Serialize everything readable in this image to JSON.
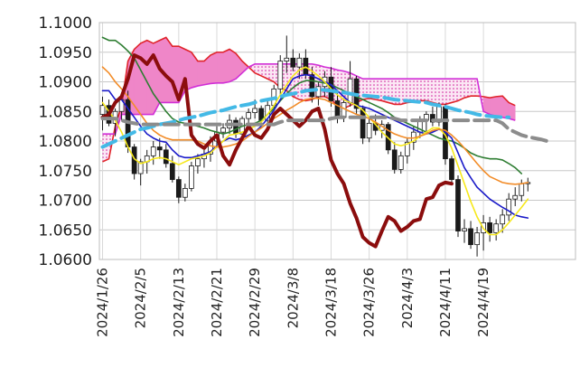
{
  "chart_data": {
    "type": "line",
    "title": "",
    "xlabel": "",
    "ylabel": "",
    "ylim": [
      1.06,
      1.1
    ],
    "ytick_labels": [
      "1.1000",
      "1.0950",
      "1.0900",
      "1.0850",
      "1.0800",
      "1.0750",
      "1.0700",
      "1.0650",
      "1.0600"
    ],
    "yticks": [
      1.1,
      1.095,
      1.09,
      1.085,
      1.08,
      1.075,
      1.07,
      1.065,
      1.06
    ],
    "xtick_labels": [
      "2024/1/26",
      "2024/2/5",
      "2024/2/13",
      "2024/2/21",
      "2024/2/29",
      "2024/3/8",
      "2024/3/18",
      "2024/3/26",
      "2024/4/3",
      "2024/4/11",
      "2024/4/19"
    ],
    "xtick_index": [
      0,
      6,
      12,
      18,
      24,
      30,
      36,
      42,
      48,
      54,
      60
    ],
    "n_periods": 75,
    "grid": true,
    "legend": "none",
    "kumo_span_a": [
      1.0765,
      1.077,
      1.0825,
      1.086,
      1.0935,
      1.0955,
      1.0965,
      1.097,
      1.0965,
      1.097,
      1.0975,
      1.096,
      1.096,
      1.0955,
      1.095,
      1.0935,
      1.0935,
      1.0945,
      1.095,
      1.095,
      1.0955,
      1.0948,
      1.0935,
      1.0925,
      1.0915,
      1.091,
      1.0905,
      1.09,
      1.089,
      1.0885,
      1.0875,
      1.087,
      1.0868,
      1.087,
      1.0875,
      1.0875,
      1.087,
      1.086,
      1.0855,
      1.086,
      1.0865,
      1.087,
      1.0872,
      1.087,
      1.0868,
      1.0865,
      1.0862,
      1.0862,
      1.0865,
      1.0866,
      1.0868,
      1.0868,
      1.0865,
      1.0862,
      1.0862,
      1.0865,
      1.0868,
      1.0873,
      1.0876,
      1.0876,
      1.0875,
      1.0873,
      1.0875,
      1.0876,
      1.0865,
      1.086
    ],
    "kumo_span_b": [
      1.0812,
      1.0812,
      1.0812,
      1.0845,
      1.0845,
      1.0845,
      1.0845,
      1.0845,
      1.0845,
      1.0865,
      1.0865,
      1.0865,
      1.0865,
      1.0885,
      1.089,
      1.0893,
      1.0895,
      1.0897,
      1.0898,
      1.0898,
      1.09,
      1.0905,
      1.0915,
      1.0925,
      1.093,
      1.093,
      1.093,
      1.093,
      1.093,
      1.093,
      1.093,
      1.093,
      1.093,
      1.093,
      1.0928,
      1.0925,
      1.0923,
      1.092,
      1.0918,
      1.0915,
      1.091,
      1.0905,
      1.0905,
      1.0905,
      1.0905,
      1.0905,
      1.0905,
      1.0905,
      1.0905,
      1.0905,
      1.0905,
      1.0905,
      1.0905,
      1.0905,
      1.0905,
      1.0905,
      1.0905,
      1.0905,
      1.0905,
      1.0905,
      1.085,
      1.0845,
      1.0842,
      1.084,
      1.0838,
      1.0835
    ],
    "candles": [
      [
        1.0845,
        1.0875,
        1.0818,
        1.086
      ],
      [
        1.086,
        1.087,
        1.0825,
        1.083
      ],
      [
        1.083,
        1.0855,
        1.0808,
        1.085
      ],
      [
        1.085,
        1.0878,
        1.0835,
        1.087
      ],
      [
        1.087,
        1.0885,
        1.078,
        1.079
      ],
      [
        1.079,
        1.0795,
        1.0735,
        1.0745
      ],
      [
        1.0745,
        1.077,
        1.0725,
        1.0765
      ],
      [
        1.0765,
        1.0785,
        1.0745,
        1.0775
      ],
      [
        1.0775,
        1.08,
        1.076,
        1.079
      ],
      [
        1.079,
        1.0805,
        1.077,
        1.0785
      ],
      [
        1.0785,
        1.0795,
        1.0755,
        1.0762
      ],
      [
        1.0762,
        1.0775,
        1.073,
        1.0735
      ],
      [
        1.0735,
        1.074,
        1.0695,
        1.0705
      ],
      [
        1.0705,
        1.0728,
        1.0698,
        1.072
      ],
      [
        1.072,
        1.0765,
        1.0715,
        1.0758
      ],
      [
        1.0758,
        1.0778,
        1.0745,
        1.077
      ],
      [
        1.077,
        1.0785,
        1.0755,
        1.0778
      ],
      [
        1.0778,
        1.0808,
        1.0765,
        1.08
      ],
      [
        1.08,
        1.0825,
        1.079,
        1.0815
      ],
      [
        1.0815,
        1.083,
        1.0805,
        1.0822
      ],
      [
        1.0822,
        1.0845,
        1.0812,
        1.0835
      ],
      [
        1.0835,
        1.084,
        1.0805,
        1.0812
      ],
      [
        1.0812,
        1.0842,
        1.08,
        1.0838
      ],
      [
        1.0838,
        1.0855,
        1.0825,
        1.0848
      ],
      [
        1.0848,
        1.087,
        1.0838,
        1.0855
      ],
      [
        1.0855,
        1.086,
        1.0828,
        1.0835
      ],
      [
        1.0835,
        1.0868,
        1.083,
        1.086
      ],
      [
        1.086,
        1.0895,
        1.0855,
        1.0888
      ],
      [
        1.0888,
        1.0945,
        1.0875,
        1.0935
      ],
      [
        1.0935,
        1.0978,
        1.0915,
        1.094
      ],
      [
        1.094,
        1.0955,
        1.0918,
        1.0925
      ],
      [
        1.0925,
        1.0948,
        1.0905,
        1.094
      ],
      [
        1.094,
        1.0955,
        1.0905,
        1.0912
      ],
      [
        1.0912,
        1.0925,
        1.0865,
        1.0875
      ],
      [
        1.0875,
        1.09,
        1.086,
        1.0892
      ],
      [
        1.0892,
        1.0918,
        1.0875,
        1.0908
      ],
      [
        1.0908,
        1.0925,
        1.0858,
        1.0868
      ],
      [
        1.0868,
        1.0885,
        1.083,
        1.084
      ],
      [
        1.084,
        1.0872,
        1.0832,
        1.0865
      ],
      [
        1.0865,
        1.0935,
        1.0858,
        1.0905
      ],
      [
        1.0905,
        1.091,
        1.0845,
        1.0855
      ],
      [
        1.0855,
        1.086,
        1.0795,
        1.0805
      ],
      [
        1.0805,
        1.0838,
        1.0798,
        1.083
      ],
      [
        1.083,
        1.0845,
        1.081,
        1.0818
      ],
      [
        1.0818,
        1.0835,
        1.0805,
        1.0828
      ],
      [
        1.0828,
        1.0832,
        1.0778,
        1.0785
      ],
      [
        1.0785,
        1.0798,
        1.0745,
        1.0752
      ],
      [
        1.0752,
        1.0782,
        1.0745,
        1.0775
      ],
      [
        1.0775,
        1.0805,
        1.0762,
        1.0798
      ],
      [
        1.0798,
        1.0825,
        1.0785,
        1.0815
      ],
      [
        1.0815,
        1.0842,
        1.0805,
        1.0835
      ],
      [
        1.0835,
        1.085,
        1.0815,
        1.0845
      ],
      [
        1.0845,
        1.0858,
        1.0825,
        1.0832
      ],
      [
        1.0832,
        1.0865,
        1.0825,
        1.0858
      ],
      [
        1.0858,
        1.0862,
        1.076,
        1.077
      ],
      [
        1.077,
        1.0775,
        1.0725,
        1.0735
      ],
      [
        1.0735,
        1.0742,
        1.0638,
        1.0648
      ],
      [
        1.0648,
        1.0668,
        1.0628,
        1.0652
      ],
      [
        1.0652,
        1.0665,
        1.0618,
        1.0625
      ],
      [
        1.0625,
        1.0655,
        1.0605,
        1.0645
      ],
      [
        1.0645,
        1.0675,
        1.0615,
        1.0662
      ],
      [
        1.0662,
        1.0672,
        1.063,
        1.0645
      ],
      [
        1.0645,
        1.0668,
        1.0632,
        1.066
      ],
      [
        1.066,
        1.0685,
        1.0645,
        1.0675
      ],
      [
        1.0675,
        1.0712,
        1.0665,
        1.0702
      ],
      [
        1.0702,
        1.0722,
        1.069,
        1.0708
      ],
      [
        1.0708,
        1.0735,
        1.0698,
        1.0728
      ],
      [
        1.0728,
        1.0738,
        1.0715,
        1.073
      ]
    ],
    "lines": [
      {
        "color": "#2e7d32",
        "width": 1.6,
        "dash": "",
        "values": [
          1.0975,
          1.097,
          1.097,
          1.0962,
          1.0952,
          1.094,
          1.092,
          1.09,
          1.088,
          1.0865,
          1.085,
          1.0838,
          1.0832,
          1.083,
          1.0828,
          1.0825,
          1.0822,
          1.0818,
          1.0815,
          1.0812,
          1.0815,
          1.082,
          1.0825,
          1.0828,
          1.083,
          1.0835,
          1.0845,
          1.0855,
          1.0868,
          1.088,
          1.089,
          1.0898,
          1.0902,
          1.0902,
          1.09,
          1.0898,
          1.0895,
          1.089,
          1.0885,
          1.088,
          1.0875,
          1.087,
          1.0865,
          1.086,
          1.0855,
          1.0848,
          1.084,
          1.0835,
          1.083,
          1.0825,
          1.082,
          1.0815,
          1.081,
          1.0805,
          1.0802,
          1.08,
          1.0795,
          1.0788,
          1.078,
          1.0775,
          1.0772,
          1.077,
          1.077,
          1.0768,
          1.0762,
          1.0755,
          1.0745
        ]
      },
      {
        "color": "#1a1ac8",
        "width": 1.6,
        "dash": "",
        "values": [
          1.0885,
          1.0885,
          1.087,
          1.087,
          1.0855,
          1.084,
          1.0825,
          1.0812,
          1.0805,
          1.08,
          1.0798,
          1.0785,
          1.0775,
          1.0772,
          1.0772,
          1.0775,
          1.0778,
          1.0782,
          1.0792,
          1.08,
          1.0805,
          1.0802,
          1.0805,
          1.081,
          1.0815,
          1.0825,
          1.0838,
          1.0852,
          1.087,
          1.0888,
          1.0905,
          1.091,
          1.0912,
          1.091,
          1.0905,
          1.09,
          1.0895,
          1.0885,
          1.0875,
          1.0865,
          1.086,
          1.0858,
          1.0855,
          1.085,
          1.0845,
          1.084,
          1.0835,
          1.083,
          1.0825,
          1.082,
          1.0815,
          1.0812,
          1.0815,
          1.082,
          1.0815,
          1.0805,
          1.078,
          1.0755,
          1.0738,
          1.0722,
          1.0712,
          1.0702,
          1.0695,
          1.0688,
          1.0682,
          1.0675,
          1.0672,
          1.067
        ]
      },
      {
        "color": "#f6e81a",
        "width": 1.6,
        "dash": "",
        "values": [
          1.0865,
          1.085,
          1.0835,
          1.0815,
          1.079,
          1.077,
          1.0762,
          1.0765,
          1.077,
          1.0772,
          1.077,
          1.0765,
          1.076,
          1.0765,
          1.077,
          1.0772,
          1.0775,
          1.078,
          1.079,
          1.08,
          1.081,
          1.0812,
          1.0815,
          1.082,
          1.0825,
          1.0832,
          1.0845,
          1.086,
          1.0878,
          1.0895,
          1.091,
          1.092,
          1.0925,
          1.0918,
          1.091,
          1.09,
          1.0888,
          1.0878,
          1.087,
          1.0865,
          1.086,
          1.0852,
          1.084,
          1.0828,
          1.0815,
          1.0805,
          1.0795,
          1.0792,
          1.0795,
          1.08,
          1.0808,
          1.0815,
          1.0822,
          1.0822,
          1.081,
          1.0788,
          1.0758,
          1.0728,
          1.0698,
          1.0672,
          1.0652,
          1.0642,
          1.0642,
          1.065,
          1.0662,
          1.0675,
          1.0688,
          1.0702
        ]
      },
      {
        "color": "#f28c28",
        "width": 1.6,
        "dash": "",
        "values": [
          1.0925,
          1.0915,
          1.09,
          1.0888,
          1.0875,
          1.086,
          1.0845,
          1.083,
          1.0818,
          1.081,
          1.0805,
          1.0802,
          1.0802,
          1.0802,
          1.0802,
          1.08,
          1.0795,
          1.0792,
          1.079,
          1.079,
          1.0792,
          1.0795,
          1.08,
          1.0808,
          1.0815,
          1.0822,
          1.083,
          1.0838,
          1.0845,
          1.0852,
          1.0858,
          1.0865,
          1.087,
          1.0872,
          1.0872,
          1.087,
          1.0865,
          1.086,
          1.0855,
          1.085,
          1.0845,
          1.0842,
          1.0838,
          1.0832,
          1.0825,
          1.0818,
          1.0812,
          1.0808,
          1.0805,
          1.0805,
          1.0808,
          1.0812,
          1.0818,
          1.082,
          1.0818,
          1.081,
          1.08,
          1.0788,
          1.0775,
          1.0762,
          1.075,
          1.074,
          1.0735,
          1.073,
          1.0728,
          1.0727,
          1.0728,
          1.073
        ]
      },
      {
        "color": "#8b0d0d",
        "width": 4,
        "dash": "",
        "values": [
          1.084,
          1.0845,
          1.0865,
          1.0875,
          1.0905,
          1.0945,
          1.094,
          1.093,
          1.0945,
          1.0922,
          1.091,
          1.09,
          1.087,
          1.0905,
          1.081,
          1.0795,
          1.0788,
          1.08,
          1.081,
          1.0775,
          1.076,
          1.0785,
          1.0805,
          1.0825,
          1.081,
          1.0805,
          1.082,
          1.0845,
          1.0855,
          1.0845,
          1.0835,
          1.0825,
          1.0835,
          1.085,
          1.0855,
          1.082,
          1.0768,
          1.0745,
          1.0728,
          1.0695,
          1.067,
          1.0638,
          1.0628,
          1.0622,
          1.0648,
          1.0672,
          1.0665,
          1.0648,
          1.0655,
          1.0665,
          1.0668,
          1.0702,
          1.0705,
          1.0725,
          1.073,
          1.0728
        ]
      },
      {
        "color": "#43b9e6",
        "width": 4,
        "dash": "16,7",
        "values": [
          1.079,
          1.0795,
          1.08,
          1.0805,
          1.081,
          1.0815,
          1.082,
          1.0822,
          1.0825,
          1.0828,
          1.083,
          1.0832,
          1.0835,
          1.0838,
          1.084,
          1.0842,
          1.0845,
          1.0848,
          1.085,
          1.0852,
          1.0855,
          1.0858,
          1.086,
          1.0862,
          1.0865,
          1.0868,
          1.087,
          1.0872,
          1.0875,
          1.0878,
          1.088,
          1.0882,
          1.0885,
          1.0886,
          1.0887,
          1.0886,
          1.0885,
          1.0883,
          1.0882,
          1.088,
          1.0878,
          1.0877,
          1.0876,
          1.0875,
          1.0874,
          1.0872,
          1.087,
          1.0869,
          1.0868,
          1.0867,
          1.0866,
          1.0865,
          1.0862,
          1.086,
          1.0858,
          1.0855,
          1.0852,
          1.085,
          1.0848,
          1.0845,
          1.0843,
          1.0842,
          1.0841,
          1.084,
          1.084
        ]
      },
      {
        "color": "#8c8c8c",
        "width": 4,
        "dash": "16,7",
        "values": [
          1.0838,
          1.0838,
          1.0838,
          1.0835,
          1.0832,
          1.083,
          1.0828,
          1.0828,
          1.0828,
          1.0828,
          1.0828,
          1.0828,
          1.0828,
          1.0828,
          1.0828,
          1.0828,
          1.0828,
          1.0828,
          1.0828,
          1.0828,
          1.0828,
          1.0828,
          1.0828,
          1.0828,
          1.0828,
          1.0828,
          1.0828,
          1.0828,
          1.0832,
          1.0835,
          1.0835,
          1.0835,
          1.0835,
          1.0835,
          1.0835,
          1.0835,
          1.0838,
          1.084,
          1.084,
          1.084,
          1.084,
          1.084,
          1.084,
          1.084,
          1.084,
          1.084,
          1.0838,
          1.0835,
          1.0835,
          1.0835,
          1.0835,
          1.0835,
          1.0835,
          1.0835,
          1.0835,
          1.0835,
          1.0835,
          1.0835,
          1.0835,
          1.0835,
          1.0835,
          1.0835,
          1.0835,
          1.083,
          1.082,
          1.0815,
          1.081,
          1.0807,
          1.0805,
          1.0803,
          1.08
        ]
      }
    ]
  }
}
